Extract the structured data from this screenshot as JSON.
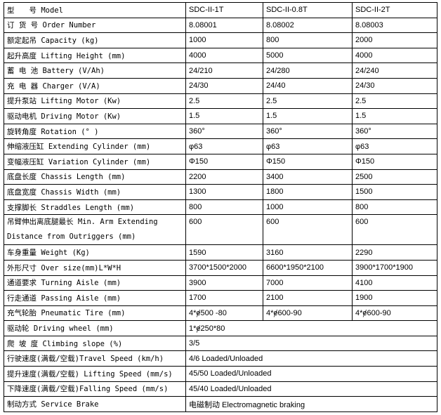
{
  "rows": [
    {
      "label": "型　　号 Model",
      "values": [
        "SDC-II-1T",
        "SDC-II-0.8T",
        "SDC-II-2T"
      ]
    },
    {
      "label": "订 货 号 Order Number",
      "values": [
        "8.08001",
        "8.08002",
        "8.08003"
      ]
    },
    {
      "label": "额定起吊 Capacity      (kg)",
      "values": [
        "1000",
        "800",
        "2000"
      ]
    },
    {
      "label": "起升高度 Lifting Height (mm)",
      "values": [
        "4000",
        "5000",
        "4000"
      ]
    },
    {
      "label": "蓄 电 池 Battery     (V/Ah)",
      "values": [
        "24/210",
        "24/280",
        "24/240"
      ]
    },
    {
      "label": "充 电 器 Charger      (V/A)",
      "values": [
        "24/30",
        "24/40",
        "24/30"
      ]
    },
    {
      "label": "提升泵站 Lifting Motor  (Kw)",
      "values": [
        "2.5",
        "2.5",
        "2.5"
      ]
    },
    {
      "label": "驱动电机 Driving Motor  (Kw)",
      "values": [
        "1.5",
        "1.5",
        "1.5"
      ]
    },
    {
      "label": "旋转角度 Rotation        (° )",
      "values": [
        "360°",
        "360°",
        "360°"
      ]
    },
    {
      "label": "伸缩液压缸 Extending Cylinder    (mm)",
      "values": [
        "φ63",
        "φ63",
        "φ63"
      ]
    },
    {
      "label": "变幅液压缸 Variation Cylinder   (mm)",
      "values": [
        "Φ150",
        "Φ150",
        "Φ150"
      ]
    },
    {
      "label": "底盘长度 Chassis Length (mm)",
      "values": [
        "2200",
        "3400",
        "2500"
      ]
    },
    {
      "label": "底盘宽度 Chassis Width (mm)",
      "values": [
        "1300",
        "1800",
        "1500"
      ]
    },
    {
      "label": "支撑脚长 Straddles Length (mm)",
      "values": [
        "800",
        "1000",
        "800"
      ]
    },
    {
      "label": "吊臂伸出离底腿最长 Min. Arm Extending Distance from Outriggers (mm)",
      "values": [
        "600",
        "600",
        "600"
      ],
      "tall": true
    },
    {
      "label": "车身重量 Weight          (Kg)",
      "values": [
        "1590",
        "3160",
        "2290"
      ]
    },
    {
      "label": "外形尺寸 Over size(mm)L*W*H",
      "values": [
        "3700*1500*2000",
        "6600*1950*2100",
        "3900*1700*1900"
      ]
    },
    {
      "label": "通道要求 Turning Aisle (mm)",
      "values": [
        "3900",
        "7000",
        "4100"
      ]
    },
    {
      "label": "行走通道 Passing Aisle (mm)",
      "values": [
        "1700",
        "2100",
        "1900"
      ]
    },
    {
      "label": "充气轮胎 Pneumatic Tire        (mm)",
      "values": [
        "4*ɇ500 -80",
        "4*ɇ600-90",
        "4*ɇ600-90"
      ]
    },
    {
      "label": "驱动轮 Driving wheel     (mm)",
      "values": [
        "1*ɇ250*80"
      ]
    },
    {
      "label": "爬 坡 度 Climbing slope (%)",
      "values": [
        "3/5"
      ]
    },
    {
      "label": "行驶速度(满载/空载)Travel Speed    (km/h)",
      "values": [
        "4/6 Loaded/Unloaded"
      ]
    },
    {
      "label": "提升速度(满载/空载) Lifting Speed   (mm/s)",
      "values": [
        "45/50 Loaded/Unloaded"
      ]
    },
    {
      "label": "下降速度(满载/空载)Falling Speed    (mm/s)",
      "values": [
        "45/40 Loaded/Unloaded"
      ]
    },
    {
      "label": "制动方式 Service Brake",
      "values": [
        "电磁制动 Electromagnetic braking"
      ]
    }
  ]
}
